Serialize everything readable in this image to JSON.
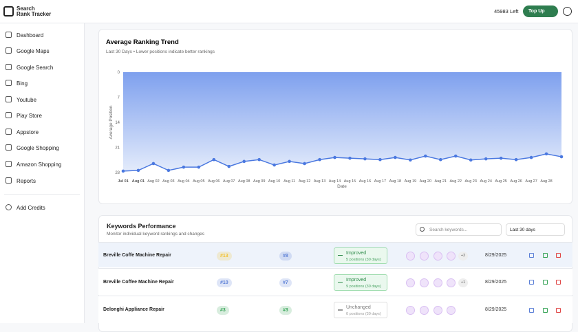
{
  "header": {
    "brand_line1": "Search",
    "brand_line2": "Rank Tracker",
    "credits": "45983 Left",
    "top_up": "Top Up"
  },
  "sidebar": {
    "items": [
      "Dashboard",
      "Google Maps",
      "Google Search",
      "Bing",
      "Youtube",
      "Play Store",
      "Appstore",
      "Google Shopping",
      "Amazon Shopping",
      "Reports"
    ],
    "add_credits": "Add Credits"
  },
  "chart_data": {
    "type": "area-line",
    "title": "Average Ranking Trend",
    "subtitle": "Last 30 Days • Lower positions indicate better rankings",
    "x_label": "Date",
    "y_label": "Average Position",
    "categories": [
      "Jul 01",
      "Aug 01",
      "Aug 02",
      "Aug 03",
      "Aug 04",
      "Aug 05",
      "Aug 06",
      "Aug 07",
      "Aug 08",
      "Aug 09",
      "Aug 10",
      "Aug 11",
      "Aug 12",
      "Aug 13",
      "Aug 14",
      "Aug 15",
      "Aug 16",
      "Aug 17",
      "Aug 18",
      "Aug 19",
      "Aug 20",
      "Aug 21",
      "Aug 22",
      "Aug 23",
      "Aug 24",
      "Aug 25",
      "Aug 26",
      "Aug 27",
      "Aug 28",
      null
    ],
    "values": [
      27.6,
      27.4,
      25.5,
      27.4,
      26.5,
      26.5,
      24.4,
      26.3,
      24.9,
      24.4,
      25.9,
      24.9,
      25.5,
      24.4,
      23.8,
      24.0,
      24.2,
      24.4,
      23.8,
      24.5,
      23.4,
      24.4,
      23.4,
      24.5,
      24.2,
      24.0,
      24.4,
      23.8,
      22.8,
      23.6
    ],
    "color": "#4a78e0",
    "ylim": [
      0,
      28
    ],
    "yticks": [
      0,
      7,
      14,
      21,
      28
    ],
    "y_reversed": true,
    "grid": false
  },
  "keywords": {
    "title": "Keywords Performance",
    "subtitle": "Monitor individual keyword rankings and changes",
    "search_placeholder": "Search keywords...",
    "period": "Last 30 days",
    "rows": [
      {
        "keyword": "Breville Coffe Machine Repair",
        "rank": "#13",
        "rank_color": "#f2c230",
        "previous": "#8",
        "previous_color": "#5b7fd6",
        "status": "Improved",
        "change": "5 positions (30 days)",
        "extra": "+2",
        "date": "8/29/2025"
      },
      {
        "keyword": "Breville Coffee Machine Repair",
        "rank": "#10",
        "rank_color": "#5b7fd6",
        "previous": "#7",
        "previous_color": "#5b7fd6",
        "status": "Improved",
        "change": "9 positions (30 days)",
        "extra": "+1",
        "date": "8/29/2025"
      },
      {
        "keyword": "Delonghi Appliance Repair",
        "rank": "#3",
        "rank_color": "#3aa55a",
        "previous": "#3",
        "previous_color": "#3aa55a",
        "status": "Unchanged",
        "change": "0 positions (30 days)",
        "extra": null,
        "date": "8/29/2025"
      }
    ]
  }
}
